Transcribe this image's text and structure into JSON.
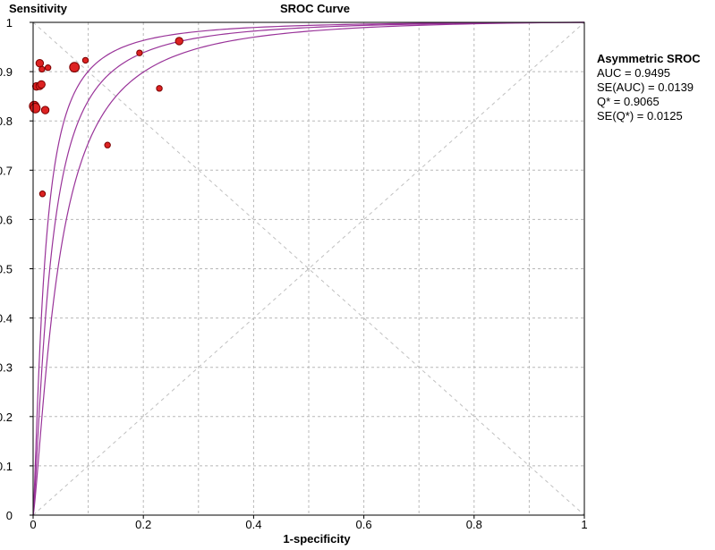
{
  "chart_data": {
    "type": "scatter",
    "title": "SROC Curve",
    "xlabel": "1-specificity",
    "ylabel": "Sensitivity",
    "xlim": [
      0,
      1
    ],
    "ylim": [
      0,
      1
    ],
    "x_ticks": [
      "0",
      "0.2",
      "0.4",
      "0.6",
      "0.8",
      "1"
    ],
    "y_ticks": [
      "0",
      "0.1",
      "0.2",
      "0.3",
      "0.4",
      "0.5",
      "0.6",
      "0.7",
      "0.8",
      "0.9",
      "1"
    ],
    "grid": true,
    "points": [
      {
        "x": 0.002,
        "y": 0.83,
        "size": "large"
      },
      {
        "x": 0.004,
        "y": 0.826,
        "size": "large"
      },
      {
        "x": 0.006,
        "y": 0.87,
        "size": "medium"
      },
      {
        "x": 0.012,
        "y": 0.871,
        "size": "medium"
      },
      {
        "x": 0.015,
        "y": 0.874,
        "size": "medium"
      },
      {
        "x": 0.012,
        "y": 0.917,
        "size": "medium"
      },
      {
        "x": 0.016,
        "y": 0.905,
        "size": "small"
      },
      {
        "x": 0.027,
        "y": 0.908,
        "size": "small"
      },
      {
        "x": 0.022,
        "y": 0.822,
        "size": "medium"
      },
      {
        "x": 0.017,
        "y": 0.652,
        "size": "small"
      },
      {
        "x": 0.075,
        "y": 0.909,
        "size": "large"
      },
      {
        "x": 0.095,
        "y": 0.923,
        "size": "small"
      },
      {
        "x": 0.135,
        "y": 0.751,
        "size": "small"
      },
      {
        "x": 0.193,
        "y": 0.938,
        "size": "small"
      },
      {
        "x": 0.229,
        "y": 0.866,
        "size": "small"
      },
      {
        "x": 0.265,
        "y": 0.962,
        "size": "medium"
      }
    ],
    "sroc": {
      "auc": 0.9495,
      "se_auc": 0.0139,
      "q_star": 0.9065,
      "se_q_star": 0.0125
    },
    "colors": {
      "points": "#dd2222",
      "point_edge": "#7a0000",
      "curve": "#993399",
      "grid": "#b8b8b8",
      "diagonal": "#c0c0c0"
    }
  },
  "stats_panel": {
    "heading": "Asymmetric SROC",
    "lines": [
      "AUC = 0.9495",
      "SE(AUC) = 0.0139",
      "Q* = 0.9065",
      "SE(Q*) = 0.0125"
    ]
  }
}
